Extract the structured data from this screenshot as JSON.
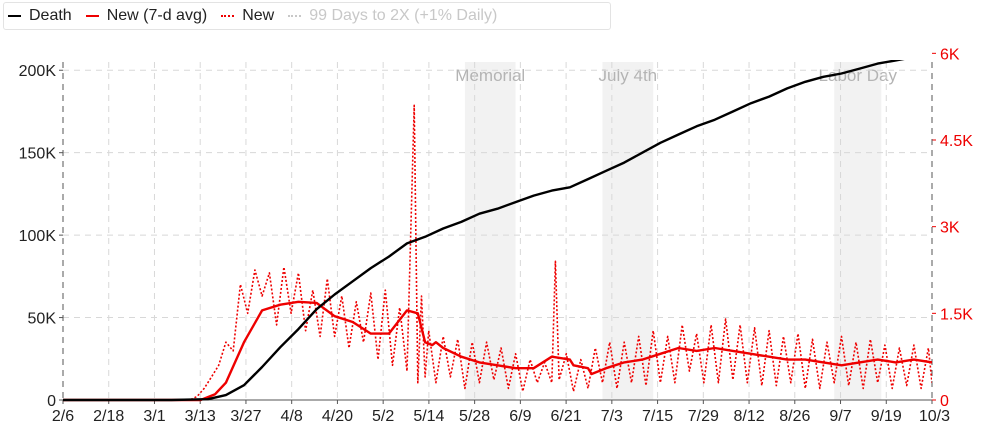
{
  "legend": [
    {
      "label": "Death",
      "color": "#000000",
      "style": "solid",
      "active": true
    },
    {
      "label": "New (7-d avg)",
      "color": "#ee0000",
      "style": "solid",
      "active": true
    },
    {
      "label": "New",
      "color": "#ee0000",
      "style": "dotted",
      "active": true
    },
    {
      "label": "99 Days to 2X (+1% Daily)",
      "color": "#c8c8c8",
      "style": "dotted",
      "active": false
    }
  ],
  "chart_data": {
    "type": "line",
    "x_tick_labels": [
      "2/6",
      "2/18",
      "3/1",
      "3/13",
      "3/27",
      "4/8",
      "4/20",
      "5/2",
      "5/14",
      "5/28",
      "6/9",
      "6/21",
      "7/3",
      "7/15",
      "7/29",
      "8/12",
      "8/26",
      "9/7",
      "9/19",
      "10/3"
    ],
    "x_range_days": [
      0,
      240
    ],
    "y_left": {
      "ticks": [
        0,
        50000,
        100000,
        150000,
        200000
      ],
      "tick_labels": [
        "0",
        "50K",
        "100K",
        "150K",
        "200K"
      ],
      "range": [
        0,
        205000
      ],
      "color": "#222222"
    },
    "y_right": {
      "ticks": [
        0,
        1500,
        3000,
        4500,
        6000
      ],
      "tick_labels": [
        "0",
        "1.5K",
        "3K",
        "4.5K",
        "6K"
      ],
      "range": [
        0,
        5850
      ],
      "color": "#ee0000"
    },
    "holidays": [
      {
        "label": "Memorial",
        "start_day": 111,
        "end_day": 125
      },
      {
        "label": "July 4th",
        "start_day": 149,
        "end_day": 163
      },
      {
        "label": "Labor Day",
        "start_day": 213,
        "end_day": 226
      }
    ],
    "grid": true,
    "series": [
      {
        "name": "Death",
        "axis": "left",
        "color": "#000000",
        "x": [
          0,
          30,
          40,
          45,
          50,
          55,
          60,
          65,
          70,
          75,
          80,
          85,
          90,
          95,
          100,
          105,
          110,
          115,
          120,
          125,
          130,
          135,
          140,
          145,
          150,
          155,
          160,
          165,
          170,
          175,
          180,
          185,
          190,
          195,
          200,
          205,
          210,
          215,
          220,
          225,
          230,
          235,
          240
        ],
        "y": [
          0,
          0,
          500,
          3000,
          9000,
          20000,
          32000,
          43000,
          55000,
          64000,
          72000,
          80000,
          87000,
          95000,
          99000,
          104000,
          108000,
          113000,
          116000,
          120000,
          124000,
          127000,
          129000,
          134000,
          139000,
          144000,
          150000,
          156000,
          161000,
          166000,
          170000,
          175000,
          180000,
          184000,
          189000,
          193000,
          196000,
          198000,
          201000,
          204000,
          206000,
          208000,
          210000
        ]
      },
      {
        "name": "New (7-d avg)",
        "axis": "right",
        "color": "#ee0000",
        "x": [
          0,
          38,
          42,
          45,
          50,
          55,
          60,
          65,
          70,
          75,
          80,
          85,
          90,
          95,
          98,
          100,
          102,
          103,
          105,
          110,
          115,
          120,
          125,
          130,
          135,
          140,
          141,
          145,
          146,
          150,
          155,
          160,
          165,
          170,
          175,
          180,
          185,
          190,
          195,
          200,
          205,
          210,
          215,
          220,
          225,
          230,
          235,
          240
        ],
        "y": [
          0,
          0,
          100,
          300,
          1000,
          1550,
          1650,
          1700,
          1680,
          1450,
          1350,
          1150,
          1150,
          1550,
          1500,
          1000,
          950,
          1000,
          900,
          750,
          650,
          600,
          550,
          550,
          750,
          700,
          600,
          550,
          450,
          550,
          650,
          700,
          800,
          900,
          850,
          900,
          850,
          800,
          750,
          700,
          700,
          650,
          600,
          650,
          700,
          650,
          700,
          650
        ]
      },
      {
        "name": "New",
        "axis": "right",
        "color": "#ee0000",
        "dotted": true,
        "x": [
          0,
          35,
          37,
          39,
          41,
          43,
          45,
          47,
          49,
          51,
          53,
          55,
          57,
          59,
          61,
          63,
          65,
          67,
          69,
          71,
          73,
          75,
          77,
          79,
          81,
          83,
          85,
          87,
          89,
          91,
          93,
          95,
          97,
          98,
          99,
          100,
          101,
          103,
          105,
          107,
          109,
          111,
          113,
          115,
          117,
          119,
          121,
          123,
          125,
          127,
          129,
          131,
          133,
          135,
          136,
          137,
          139,
          141,
          143,
          145,
          147,
          149,
          151,
          153,
          155,
          157,
          159,
          161,
          163,
          165,
          167,
          169,
          171,
          173,
          175,
          177,
          179,
          181,
          183,
          185,
          187,
          189,
          191,
          193,
          195,
          197,
          199,
          201,
          203,
          205,
          207,
          209,
          211,
          213,
          215,
          217,
          219,
          221,
          223,
          225,
          227,
          229,
          231,
          233,
          235,
          237,
          239,
          240
        ],
        "y": [
          0,
          0,
          60,
          200,
          400,
          600,
          1000,
          850,
          2000,
          1500,
          2250,
          1800,
          2200,
          1300,
          2300,
          1500,
          2200,
          1200,
          1900,
          1100,
          2100,
          1100,
          1800,
          900,
          1700,
          1000,
          1850,
          700,
          1900,
          600,
          1600,
          500,
          5100,
          300,
          1800,
          400,
          1200,
          300,
          1100,
          400,
          1050,
          200,
          1000,
          300,
          1000,
          350,
          900,
          200,
          800,
          150,
          700,
          300,
          650,
          300,
          2400,
          350,
          800,
          150,
          700,
          200,
          900,
          300,
          1000,
          200,
          1000,
          300,
          1100,
          250,
          1200,
          300,
          1100,
          300,
          1300,
          500,
          1150,
          300,
          1300,
          300,
          1400,
          350,
          1300,
          300,
          1250,
          250,
          1200,
          250,
          1100,
          300,
          1150,
          200,
          1050,
          200,
          1000,
          300,
          1100,
          250,
          1000,
          200,
          1050,
          300,
          950,
          200,
          900,
          250,
          950,
          200,
          900,
          300
        ]
      }
    ]
  }
}
